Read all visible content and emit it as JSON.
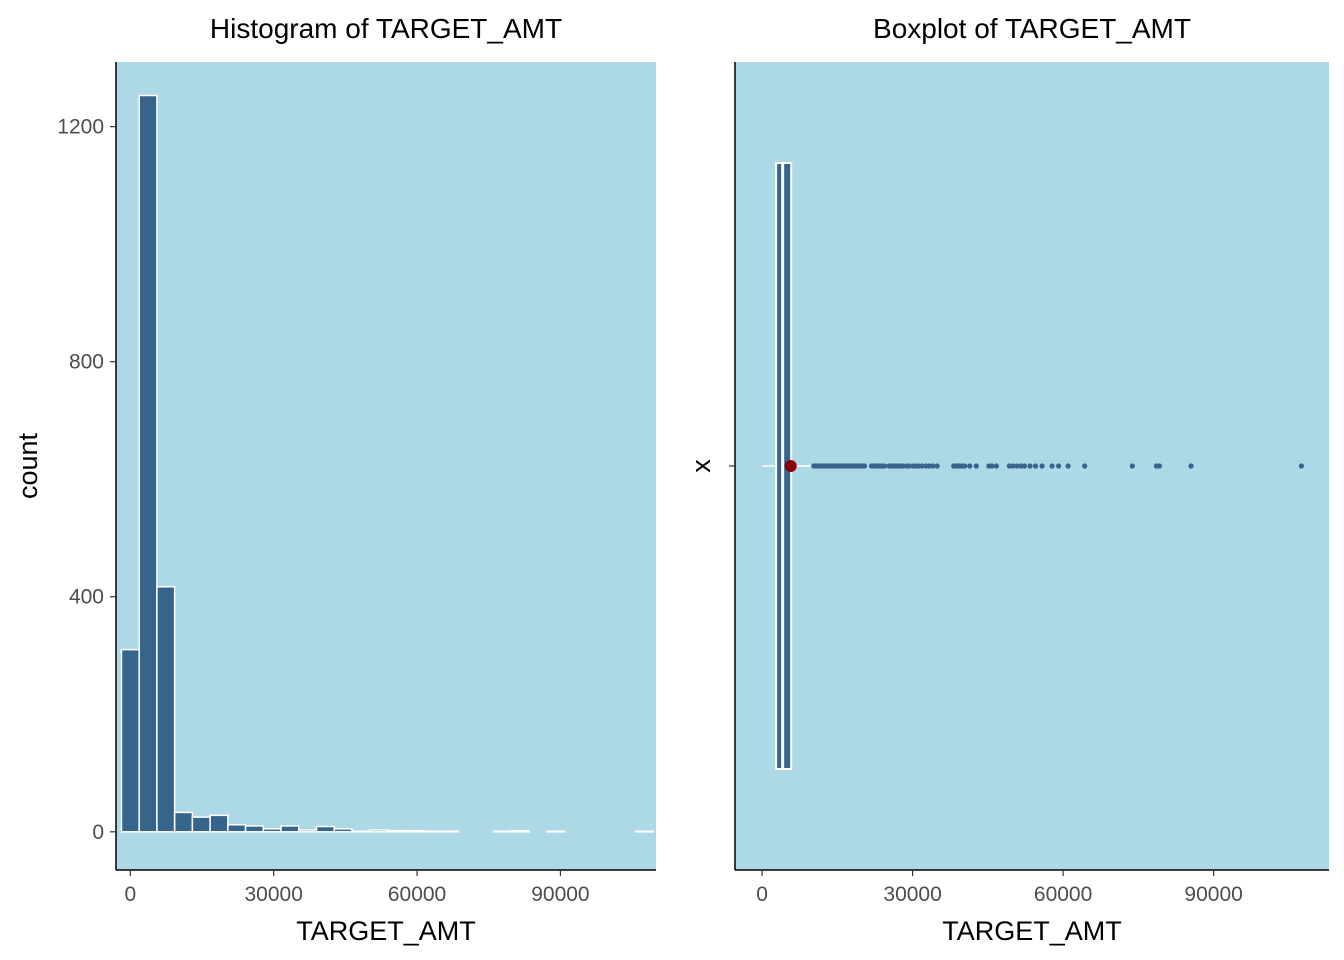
{
  "colors": {
    "panel_bg": "#add8e6",
    "bar_fill": "#36648b",
    "bar_stroke": "#ffffff",
    "point_fill": "#36648b",
    "mean_point": "#8b0000",
    "axis_line": "#000000",
    "tick_text": "#4d4d4d"
  },
  "chart_data": [
    {
      "type": "bar",
      "title": "Histogram of TARGET_AMT",
      "xlabel": "TARGET_AMT",
      "ylabel": "count",
      "xlim": [
        -3000,
        110000
      ],
      "ylim": [
        -65,
        1310
      ],
      "x_ticks": [
        0,
        30000,
        60000,
        90000
      ],
      "x_tick_labels": [
        "0",
        "30000",
        "60000",
        "90000"
      ],
      "y_ticks": [
        0,
        400,
        800,
        1200
      ],
      "y_tick_labels": [
        "0",
        "400",
        "800",
        "1200"
      ],
      "grid": false,
      "bin_width": 3710,
      "bin_starts": [
        -1855,
        1855,
        5565,
        9275,
        12985,
        16695,
        20405,
        24115,
        27825,
        31535,
        35245,
        38955,
        42665,
        46375,
        50085,
        53795,
        57505,
        61215,
        64925,
        68635,
        72345,
        76055,
        79765,
        83475,
        87185,
        90895,
        94605,
        98315,
        102025,
        105735
      ],
      "values": [
        310,
        1253,
        417,
        33,
        25,
        28,
        12,
        10,
        5,
        10,
        3,
        9,
        5,
        1,
        3,
        2,
        2,
        1,
        1,
        0,
        0,
        1,
        2,
        0,
        1,
        0,
        0,
        0,
        0,
        1
      ]
    },
    {
      "type": "boxplot",
      "title": "Boxplot of TARGET_AMT",
      "xlabel": "TARGET_AMT",
      "ylabel": "",
      "y_category_label": "x",
      "xlim": [
        -5400,
        113000
      ],
      "x_ticks": [
        0,
        30000,
        60000,
        90000
      ],
      "x_tick_labels": [
        "0",
        "30000",
        "60000",
        "90000"
      ],
      "grid": false,
      "box": {
        "whisker_low": 30,
        "q1": 2800,
        "median": 4100,
        "q3": 5800,
        "whisker_high": 10200
      },
      "mean": 5700,
      "outliers": [
        10300,
        10700,
        11100,
        11500,
        11900,
        12300,
        12700,
        13100,
        13500,
        13900,
        14300,
        14700,
        15100,
        15500,
        15900,
        16300,
        16700,
        17100,
        17500,
        17900,
        18300,
        18700,
        19100,
        19500,
        19900,
        20400,
        21800,
        22300,
        22700,
        23100,
        23500,
        23900,
        24400,
        25300,
        25800,
        26200,
        26700,
        27100,
        27500,
        28100,
        28800,
        29200,
        30000,
        30600,
        31200,
        31900,
        32700,
        33300,
        34000,
        34900,
        38200,
        38600,
        39000,
        39400,
        39900,
        40400,
        41400,
        42700,
        45200,
        45800,
        46700,
        49300,
        50000,
        50800,
        51600,
        52300,
        53400,
        54500,
        55800,
        57800,
        59100,
        61000,
        64300,
        73800,
        78600,
        79200,
        85500,
        107500
      ]
    }
  ]
}
